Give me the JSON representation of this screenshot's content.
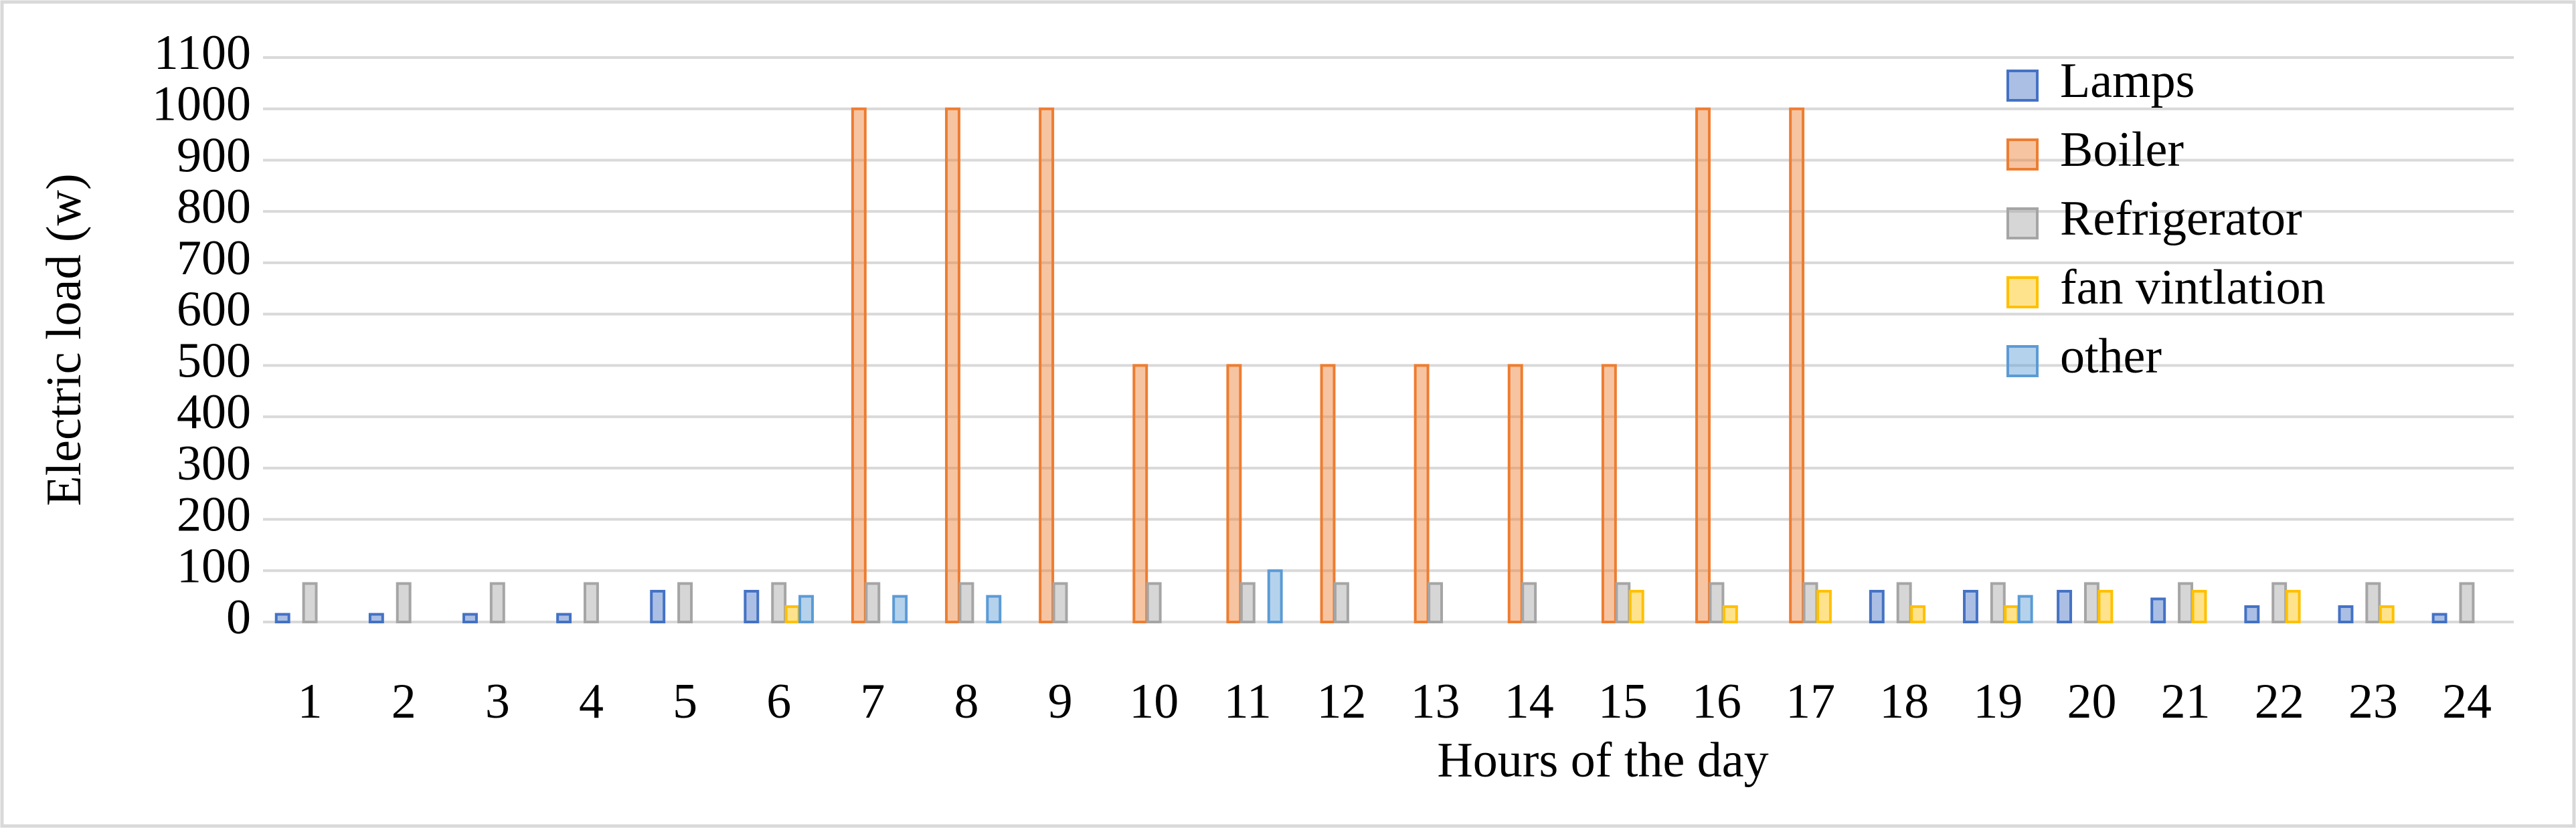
{
  "chart_data": {
    "type": "bar",
    "x_label": "Hours of the day",
    "y_label": "Electric load (w)",
    "categories": [
      "1",
      "2",
      "3",
      "4",
      "5",
      "6",
      "7",
      "8",
      "9",
      "10",
      "11",
      "12",
      "13",
      "14",
      "15",
      "16",
      "17",
      "18",
      "19",
      "20",
      "21",
      "22",
      "23",
      "24"
    ],
    "series": [
      {
        "name": "Lamps",
        "color": "#4472c4",
        "values": [
          15,
          15,
          15,
          15,
          60,
          60,
          0,
          0,
          0,
          0,
          0,
          0,
          0,
          0,
          0,
          0,
          0,
          60,
          60,
          60,
          45,
          30,
          30,
          15
        ]
      },
      {
        "name": "Boiler",
        "color": "#ed7d31",
        "values": [
          0,
          0,
          0,
          0,
          0,
          0,
          1000,
          1000,
          1000,
          500,
          500,
          500,
          500,
          500,
          500,
          1000,
          1000,
          0,
          0,
          0,
          0,
          0,
          0,
          0
        ]
      },
      {
        "name": "Refrigerator",
        "color": "#a5a5a5",
        "values": [
          75,
          75,
          75,
          75,
          75,
          75,
          75,
          75,
          75,
          75,
          75,
          75,
          75,
          75,
          75,
          75,
          75,
          75,
          75,
          75,
          75,
          75,
          75,
          75
        ]
      },
      {
        "name": "fan vintlation",
        "color": "#ffc000",
        "values": [
          0,
          0,
          0,
          0,
          0,
          30,
          0,
          0,
          0,
          0,
          0,
          0,
          0,
          0,
          60,
          30,
          60,
          30,
          30,
          60,
          60,
          60,
          30,
          0
        ]
      },
      {
        "name": "other",
        "color": "#5b9bd5",
        "values": [
          0,
          0,
          0,
          0,
          0,
          50,
          50,
          50,
          0,
          0,
          100,
          0,
          0,
          0,
          0,
          0,
          0,
          0,
          50,
          0,
          0,
          0,
          0,
          0
        ]
      }
    ],
    "ylim": [
      0,
      1100
    ],
    "yticks": [
      0,
      100,
      200,
      300,
      400,
      500,
      600,
      700,
      800,
      900,
      1000,
      1100
    ],
    "grid": true,
    "legend": "top-right"
  }
}
